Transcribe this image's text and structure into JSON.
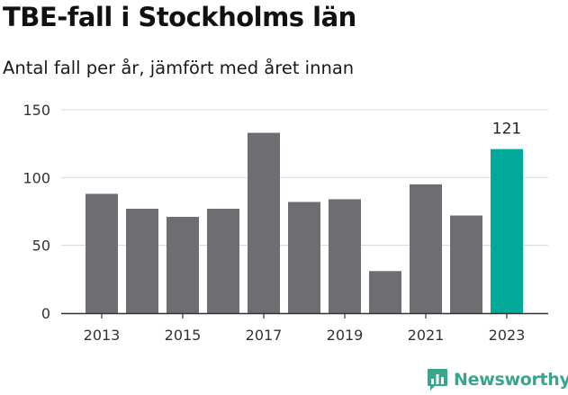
{
  "header": {
    "title": "TBE-fall i Stockholms län",
    "subtitle": "Antal fall per år, jämfört med året innan"
  },
  "brand": {
    "name": "Newsworthy",
    "color": "#3aa58f"
  },
  "colors": {
    "bar": "#6e6d72",
    "highlight": "#00a99a",
    "grid": "#d9d9d9",
    "axis": "#333333"
  },
  "chart_data": {
    "type": "bar",
    "categories": [
      "2013",
      "2014",
      "2015",
      "2016",
      "2017",
      "2018",
      "2019",
      "2020",
      "2021",
      "2022",
      "2023"
    ],
    "values": [
      88,
      77,
      71,
      77,
      133,
      82,
      84,
      31,
      95,
      72,
      121
    ],
    "x_tick_labels": [
      "2013",
      "2015",
      "2017",
      "2019",
      "2021",
      "2023"
    ],
    "y_ticks": [
      0,
      50,
      100,
      150
    ],
    "ylim": [
      0,
      150
    ],
    "highlight_category": "2023",
    "data_labels": [
      {
        "category": "2023",
        "text": "121"
      }
    ],
    "grid": true,
    "legend": false
  }
}
